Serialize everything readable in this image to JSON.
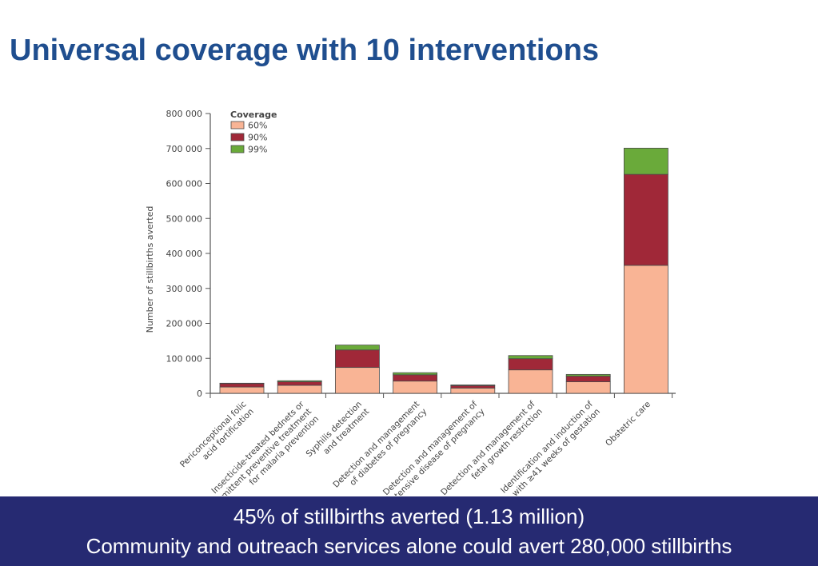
{
  "slide": {
    "title": "Universal coverage with 10 interventions",
    "footer_line1": "45% of stillbirths averted (1.13 million)",
    "footer_line2": "Community and outreach services alone could avert 280,000 stillbirths"
  },
  "colors": {
    "title": "#1f4e8f",
    "footer_bg": "#262a72",
    "coverage_60": "#f9b495",
    "coverage_90": "#a02838",
    "coverage_99": "#6aaa3a"
  },
  "chart_data": {
    "type": "bar",
    "stacked": true,
    "ylabel": "Number of stillbirths averted",
    "xlabel": "",
    "ylim": [
      0,
      800000
    ],
    "yticks": [
      0,
      100000,
      200000,
      300000,
      400000,
      500000,
      600000,
      700000,
      800000
    ],
    "ytick_labels": [
      "0",
      "100 000",
      "200 000",
      "300 000",
      "400 000",
      "500 000",
      "600 000",
      "700 000",
      "800 000"
    ],
    "grid": false,
    "legend": {
      "title": "Coverage",
      "placement": "top-left"
    },
    "categories": [
      [
        "Periconceptional folic",
        "acid fortification"
      ],
      [
        "Insecticide-treated bednets or",
        "intermittent preventive treatment",
        "for malaria prevention"
      ],
      [
        "Syphilis detection",
        "and treatment"
      ],
      [
        "Detection and management",
        "of diabetes of pregnancy"
      ],
      [
        "Detection and management of",
        "hypertensive disease of pregnancy"
      ],
      [
        "Detection and management of",
        "fetal growth restriction"
      ],
      [
        "Identification and induction of",
        "mothers with ≥41 weeks of gestation"
      ],
      [
        "Obstetric care"
      ]
    ],
    "series": [
      {
        "name": "60%",
        "color": "#f9b495",
        "values": [
          18000,
          23000,
          74000,
          35000,
          15000,
          67000,
          33000,
          366000
        ]
      },
      {
        "name": "90%",
        "color": "#a02838",
        "values": [
          10000,
          10000,
          50000,
          18000,
          7000,
          32000,
          16000,
          260000
        ]
      },
      {
        "name": "99%",
        "color": "#6aaa3a",
        "values": [
          1000,
          3000,
          14000,
          6000,
          2000,
          9000,
          5000,
          75000
        ]
      }
    ]
  }
}
